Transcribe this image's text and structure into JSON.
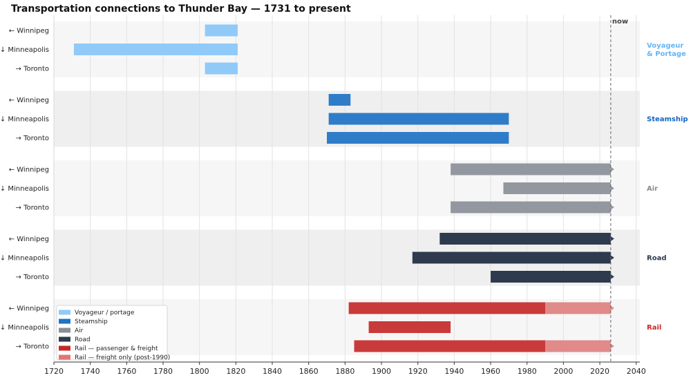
{
  "chart_data": {
    "type": "gantt",
    "title": "Transportation connections to Thunder Bay  —  1731 to present",
    "xlim": [
      1720,
      2042
    ],
    "x_ticks": [
      1720,
      1740,
      1760,
      1780,
      1800,
      1820,
      1840,
      1860,
      1880,
      1900,
      1920,
      1940,
      1960,
      1980,
      2000,
      2020,
      2040
    ],
    "now_year": 2026,
    "now_label": "now",
    "grid": "vertical",
    "legend_placement": "bottom-left",
    "groups": [
      {
        "mode": "Voyageur\n& Portage",
        "color": "#90caf9",
        "rows": [
          {
            "label": "← Winnipeg",
            "segments": [
              {
                "start": 1803,
                "end": 1821,
                "type": "Voyageur / portage"
              }
            ]
          },
          {
            "label": "↓ Minneapolis",
            "segments": [
              {
                "start": 1731,
                "end": 1821,
                "type": "Voyageur / portage"
              }
            ]
          },
          {
            "label": "→ Toronto",
            "segments": [
              {
                "start": 1803,
                "end": 1821,
                "type": "Voyageur / portage"
              }
            ]
          }
        ]
      },
      {
        "mode": "Steamship",
        "color": "#1565c0",
        "rows": [
          {
            "label": "← Winnipeg",
            "segments": [
              {
                "start": 1871,
                "end": 1883,
                "type": "Steamship"
              }
            ]
          },
          {
            "label": "↓ Minneapolis",
            "segments": [
              {
                "start": 1871,
                "end": 1970,
                "type": "Steamship"
              }
            ]
          },
          {
            "label": "→ Toronto",
            "segments": [
              {
                "start": 1870,
                "end": 1970,
                "type": "Steamship"
              }
            ]
          }
        ]
      },
      {
        "mode": "Air",
        "color": "#888c93",
        "rows": [
          {
            "label": "← Winnipeg",
            "segments": [
              {
                "start": 1938,
                "end": 2026,
                "type": "Air",
                "ongoing": true
              }
            ]
          },
          {
            "label": "↓ Minneapolis",
            "segments": [
              {
                "start": 1967,
                "end": 2026,
                "type": "Air",
                "ongoing": true
              }
            ]
          },
          {
            "label": "→ Toronto",
            "segments": [
              {
                "start": 1938,
                "end": 2026,
                "type": "Air",
                "ongoing": true
              }
            ]
          }
        ]
      },
      {
        "mode": "Road",
        "color": "#2e3a4e",
        "rows": [
          {
            "label": "← Winnipeg",
            "segments": [
              {
                "start": 1932,
                "end": 2026,
                "type": "Road",
                "ongoing": true
              }
            ]
          },
          {
            "label": "↓ Minneapolis",
            "segments": [
              {
                "start": 1917,
                "end": 2026,
                "type": "Road",
                "ongoing": true
              }
            ]
          },
          {
            "label": "→ Toronto",
            "segments": [
              {
                "start": 1960,
                "end": 2026,
                "type": "Road",
                "ongoing": true
              }
            ]
          }
        ]
      },
      {
        "mode": "Rail",
        "color": "#c62828",
        "rows": [
          {
            "label": "← Winnipeg",
            "segments": [
              {
                "start": 1882,
                "end": 1990,
                "type": "Rail — passenger & freight"
              },
              {
                "start": 1990,
                "end": 2026,
                "type": "Rail — freight only (post-1990)",
                "ongoing": true
              }
            ]
          },
          {
            "label": "↓ Minneapolis",
            "segments": [
              {
                "start": 1893,
                "end": 1938,
                "type": "Rail — passenger & freight"
              }
            ]
          },
          {
            "label": "→ Toronto",
            "segments": [
              {
                "start": 1885,
                "end": 1990,
                "type": "Rail — passenger & freight"
              },
              {
                "start": 1990,
                "end": 2026,
                "type": "Rail — freight only (post-1990)",
                "ongoing": true
              }
            ]
          }
        ]
      }
    ],
    "legend": [
      {
        "label": "Voyageur / portage",
        "color": "#90caf9"
      },
      {
        "label": "Steamship",
        "color": "#1e73c4"
      },
      {
        "label": "Air",
        "color": "#8a8e95"
      },
      {
        "label": "Road",
        "color": "#2e3a4e"
      },
      {
        "label": "Rail — passenger & freight",
        "color": "#c62828"
      },
      {
        "label": "Rail — freight only (post-1990)",
        "color": "#e57373"
      }
    ],
    "colors": {
      "Voyageur / portage": "#90caf9",
      "Steamship": "#2f7dc8",
      "Air": "#93979f",
      "Road": "#2e3a4e",
      "Rail — passenger & freight": "#c93a3a",
      "Rail — freight only (post-1990)": "#e08a89",
      "mode_Voyageur": "#64b5f6",
      "mode_Steamship": "#1565c0",
      "mode_Air": "#888c93",
      "mode_Road": "#2e3a4e",
      "mode_Rail": "#c62828",
      "band_light": "#f6f6f6",
      "band_dark": "#efefef"
    }
  }
}
